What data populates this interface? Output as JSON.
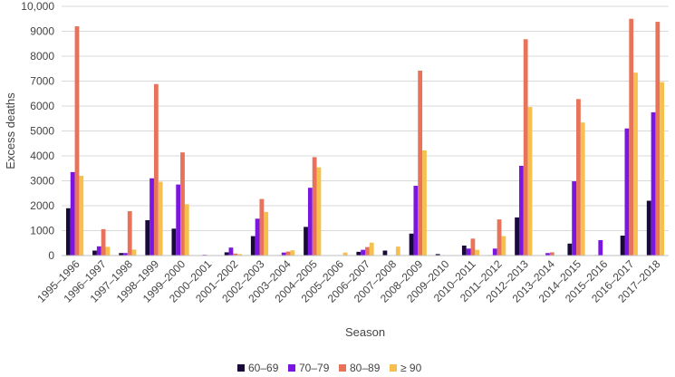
{
  "chart_data": {
    "type": "bar",
    "xlabel": "Season",
    "ylabel": "Excess deaths",
    "ylim": [
      0,
      10000
    ],
    "yticks": [
      0,
      1000,
      2000,
      3000,
      4000,
      5000,
      6000,
      7000,
      8000,
      9000,
      10000
    ],
    "ytick_labels": [
      "0",
      "1000",
      "2000",
      "3000",
      "4000",
      "5000",
      "6000",
      "7000",
      "8000",
      "9000",
      "10,000"
    ],
    "grid": true,
    "legend_position": "bottom",
    "categories": [
      "1995–1996",
      "1996–1997",
      "1997–1998",
      "1998–1999",
      "1999–2000",
      "2000–2001",
      "2001–2002",
      "2002–2003",
      "2003–2004",
      "2004–2005",
      "2005–2006",
      "2006–2007",
      "2007–2008",
      "2008–2009",
      "2009–2010",
      "2010–2011",
      "2011–2012",
      "2012–2013",
      "2013–2014",
      "2014–2015",
      "2015–2016",
      "2016–2017",
      "2017–2018"
    ],
    "series": [
      {
        "name": "60–69",
        "color": "#1a0a3c",
        "values": [
          1900,
          200,
          100,
          1420,
          1080,
          0,
          130,
          780,
          20,
          1150,
          0,
          150,
          200,
          880,
          60,
          400,
          20,
          1530,
          0,
          480,
          20,
          800,
          2200
        ]
      },
      {
        "name": "70–79",
        "color": "#7a16e0",
        "values": [
          3350,
          370,
          100,
          3100,
          2850,
          30,
          320,
          1480,
          120,
          2720,
          0,
          230,
          0,
          2800,
          0,
          280,
          280,
          3600,
          100,
          2980,
          620,
          5100,
          5750
        ]
      },
      {
        "name": "80–89",
        "color": "#e8735a",
        "values": [
          9200,
          1060,
          1780,
          6880,
          4140,
          0,
          80,
          2270,
          160,
          3950,
          0,
          340,
          0,
          7420,
          0,
          680,
          1450,
          8680,
          130,
          6280,
          0,
          9500,
          9380
        ]
      },
      {
        "name": "≥ 90",
        "color": "#f5c04e",
        "values": [
          3200,
          350,
          240,
          2960,
          2060,
          0,
          60,
          1750,
          210,
          3540,
          120,
          520,
          360,
          4220,
          0,
          230,
          780,
          5960,
          0,
          5340,
          0,
          7340,
          6960
        ]
      }
    ]
  }
}
